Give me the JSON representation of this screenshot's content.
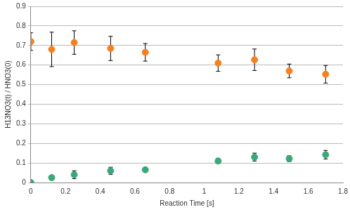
{
  "chart_data": {
    "type": "scatter",
    "xlabel": "Reaction Time [s]",
    "ylabel": "H13NO3(t) / HNO3(0)",
    "xlim": [
      0,
      1.8
    ],
    "xticks": [
      0,
      0.2,
      0.4,
      0.6,
      0.8,
      1,
      1.2,
      1.4,
      1.6,
      1.8
    ],
    "ylim": [
      0,
      0.9
    ],
    "yticks": [
      0,
      0.1,
      0.2,
      0.3,
      0.4,
      0.5,
      0.6,
      0.7,
      0.8,
      0.9
    ],
    "grid": "y",
    "series": [
      {
        "color": "#f7801f",
        "marker": "circle",
        "x": [
          0,
          0.12,
          0.25,
          0.46,
          0.66,
          1.08,
          1.29,
          1.49,
          1.7
        ],
        "values": [
          0.72,
          0.68,
          0.715,
          0.685,
          0.665,
          0.61,
          0.627,
          0.57,
          0.553
        ],
        "errors": [
          0.045,
          0.088,
          0.06,
          0.062,
          0.045,
          0.042,
          0.055,
          0.035,
          0.045
        ]
      },
      {
        "color": "#3aa978",
        "marker": "circle",
        "x": [
          0,
          0.12,
          0.25,
          0.46,
          0.66,
          1.08,
          1.29,
          1.49,
          1.7
        ],
        "values": [
          0,
          0.025,
          0.04,
          0.06,
          0.065,
          0.11,
          0.13,
          0.122,
          0.142
        ],
        "errors": [
          0,
          0.005,
          0.02,
          0.018,
          0.005,
          0.012,
          0.02,
          0.015,
          0.022
        ]
      }
    ]
  }
}
